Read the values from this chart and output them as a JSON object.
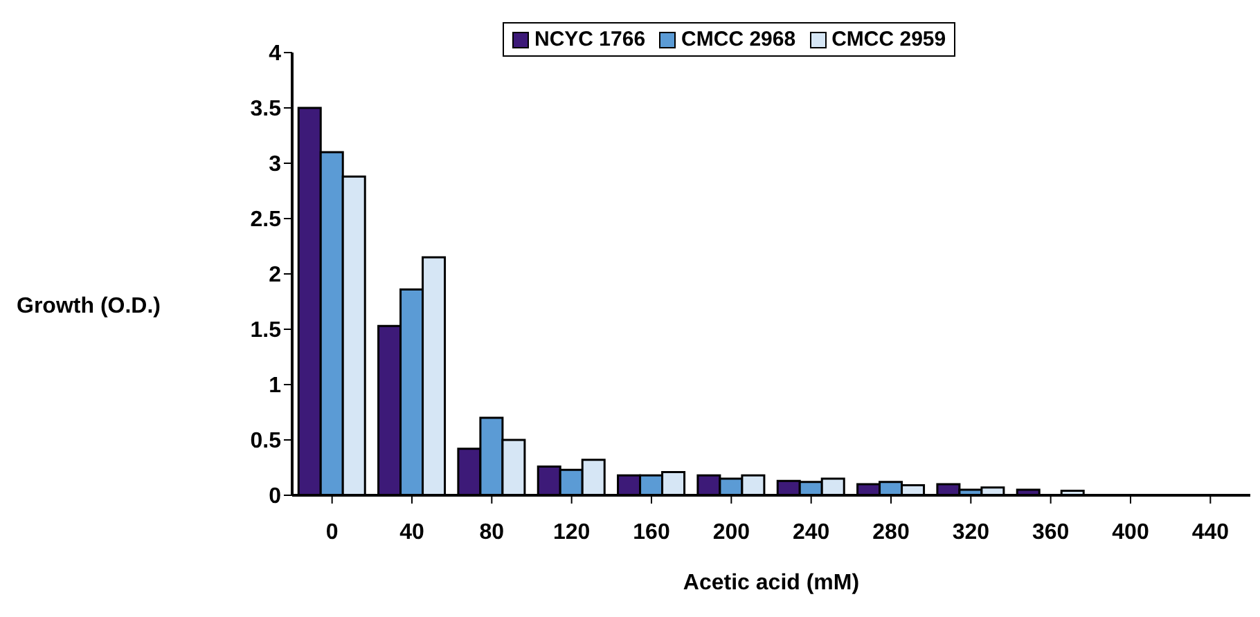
{
  "chart_data": {
    "type": "bar",
    "xlabel": "Acetic acid (mM)",
    "ylabel": "Growth (O.D.)",
    "categories": [
      "0",
      "40",
      "80",
      "120",
      "160",
      "200",
      "240",
      "280",
      "320",
      "360",
      "400",
      "440"
    ],
    "series": [
      {
        "name": "NCYC 1766",
        "color": "#3d1a78",
        "values": [
          3.5,
          1.53,
          0.42,
          0.26,
          0.18,
          0.18,
          0.13,
          0.1,
          0.1,
          0.05,
          0,
          0
        ]
      },
      {
        "name": "CMCC 2968",
        "color": "#5b9bd5",
        "values": [
          3.1,
          1.86,
          0.7,
          0.23,
          0.18,
          0.15,
          0.12,
          0.12,
          0.05,
          0,
          0,
          0
        ]
      },
      {
        "name": "CMCC 2959",
        "color": "#d6e6f5",
        "values": [
          2.88,
          2.15,
          0.5,
          0.32,
          0.21,
          0.18,
          0.15,
          0.09,
          0.07,
          0.04,
          0,
          0
        ]
      }
    ],
    "ylim": [
      0,
      4
    ],
    "yticks": [
      0,
      0.5,
      1,
      1.5,
      2,
      2.5,
      3,
      3.5,
      4
    ],
    "grid": false,
    "legend": "top left"
  }
}
